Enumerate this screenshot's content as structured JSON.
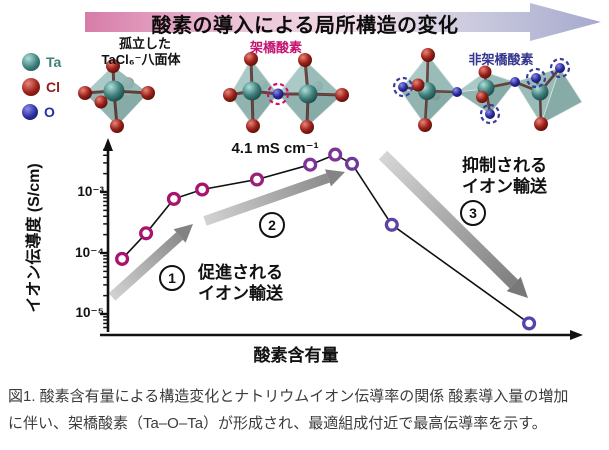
{
  "banner": {
    "title": "酸素の導入による局所構造の変化"
  },
  "legend": {
    "items": [
      {
        "label": "Ta",
        "color": "#3e7e7a"
      },
      {
        "label": "Cl",
        "color": "#8e1f1f"
      },
      {
        "label": "O",
        "color": "#2929ac"
      }
    ]
  },
  "structures": {
    "left_caption_line1": "孤立した",
    "left_caption_line2": "TaCl₆⁻八面体",
    "middle_label": "架橋酸素",
    "middle_label_color": "#c4126f",
    "right_label": "非架橋酸素",
    "right_label_color": "#35358f"
  },
  "chart_data": {
    "type": "line-scatter",
    "xlabel": "酸素含有量",
    "ylabel": "イオン伝導度 (S/cm)",
    "yscale": "log",
    "ytick_labels": [
      "10⁻³",
      "10⁻⁴",
      "10⁻⁵"
    ],
    "ytick_values": [
      0.001,
      0.0001,
      1e-05
    ],
    "ylim": [
      5e-06,
      0.005
    ],
    "peak_annotation": "4.1 mS cm⁻¹",
    "points": [
      {
        "x": 4.6,
        "y": 8e-05,
        "color": "#a8136b"
      },
      {
        "x": 9.6,
        "y": 0.00021,
        "color": "#a8136b"
      },
      {
        "x": 15.4,
        "y": 0.00077,
        "color": "#a8136b"
      },
      {
        "x": 21.3,
        "y": 0.0011,
        "color": "#a8136b"
      },
      {
        "x": 32.7,
        "y": 0.0016,
        "color": "#99217a"
      },
      {
        "x": 43.8,
        "y": 0.0028,
        "color": "#7c3597"
      },
      {
        "x": 49.0,
        "y": 0.0041,
        "color": "#7c3597"
      },
      {
        "x": 52.5,
        "y": 0.0029,
        "color": "#6d3a9c"
      },
      {
        "x": 60.8,
        "y": 0.00029,
        "color": "#5e42a3"
      },
      {
        "x": 89.4,
        "y": 7e-06,
        "color": "#5045a8"
      }
    ],
    "steps": [
      {
        "number": "1",
        "label_line1": "促進される",
        "label_line2": "イオン輸送"
      },
      {
        "number": "2"
      },
      {
        "number": "3",
        "label_line1": "抑制される",
        "label_line2": "イオン輸送"
      }
    ]
  },
  "caption": {
    "line1": "図1. 酸素含有量による構造変化とナトリウムイオン伝導率の関係 酸素導入量の増加",
    "line2": "に伴い、架橋酸素（Ta–O–Ta）が形成され、最適組成付近で最高伝導率を示す。"
  }
}
